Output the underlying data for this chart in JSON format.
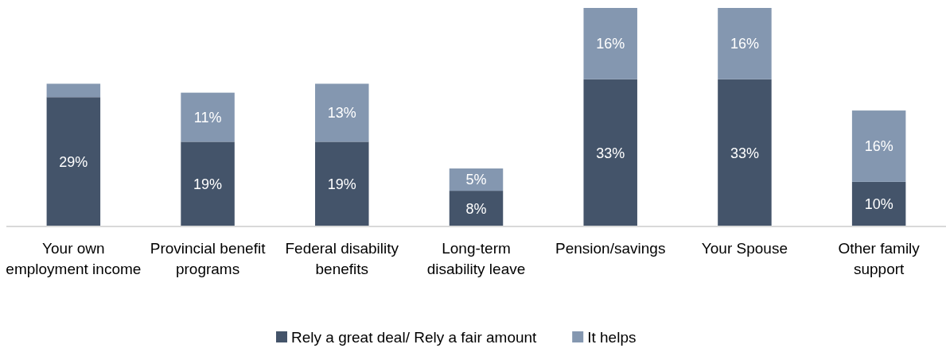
{
  "chart_data": {
    "type": "bar",
    "stacked": true,
    "legend": "bottom",
    "categories": [
      "Your own employment income",
      "Provincial benefit programs",
      "Federal disability benefits",
      "Long-term disability leave",
      "Pension/savings",
      "Your Spouse",
      "Other family support"
    ],
    "series": [
      {
        "name": "Rely a great deal/ Rely a fair amount",
        "color": "#44546a",
        "values": [
          29,
          19,
          19,
          8,
          33,
          33,
          10
        ],
        "value_labels": [
          "29%",
          "19%",
          "19%",
          "8%",
          "33%",
          "33%",
          "10%"
        ]
      },
      {
        "name": "It helps",
        "color": "#8497b0",
        "values": [
          3,
          11,
          13,
          5,
          16,
          16,
          16
        ],
        "value_labels": [
          null,
          "11%",
          "13%",
          "5%",
          "16%",
          "16%",
          "16%"
        ]
      }
    ]
  }
}
